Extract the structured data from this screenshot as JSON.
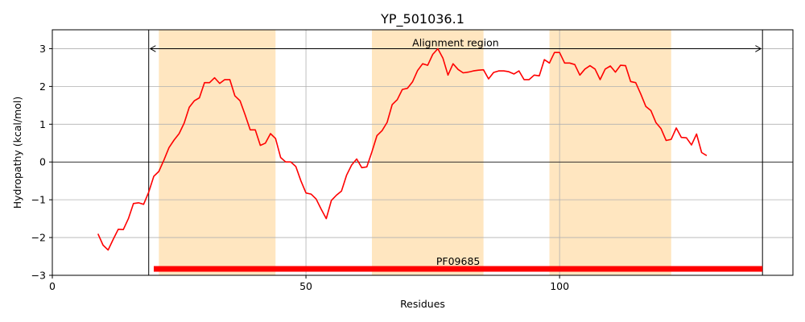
{
  "chart_data": {
    "type": "line",
    "title": "YP_501036.1",
    "xlabel": "Residues",
    "ylabel": "Hydropathy (kcal/mol)",
    "xlim": [
      0,
      146
    ],
    "ylim": [
      -3,
      3.5
    ],
    "xticks": [
      0,
      50,
      100
    ],
    "yticks": [
      -3,
      -2,
      -1,
      0,
      1,
      2,
      3
    ],
    "grid": true,
    "line_color": "#ff0000",
    "series": [
      {
        "x": [
          9,
          10,
          11,
          12,
          13,
          14,
          15,
          16,
          17,
          18,
          19,
          20,
          21,
          22,
          23,
          24,
          25,
          26,
          27,
          28,
          29,
          30,
          31,
          32,
          33,
          34,
          35,
          36,
          37,
          38,
          39,
          40,
          41,
          42,
          43,
          44,
          45,
          46,
          47,
          48,
          49,
          50,
          51,
          52,
          53,
          54,
          55,
          56,
          57,
          58,
          59,
          60,
          61,
          62,
          63,
          64,
          65,
          66,
          67,
          68,
          69,
          70,
          71,
          72,
          73,
          74,
          75,
          76,
          77,
          78,
          79,
          80,
          81,
          82,
          83,
          84,
          85,
          86,
          87,
          88,
          89,
          90,
          91,
          92,
          93,
          94,
          95,
          96,
          97,
          98,
          99,
          100,
          101,
          102,
          103,
          104,
          105,
          106,
          107,
          108,
          109,
          110,
          111,
          112,
          113,
          114,
          115,
          116,
          117,
          118,
          119,
          120,
          121,
          122,
          123,
          124,
          125,
          126,
          127,
          128,
          129
        ],
        "y": [
          -1.9,
          -2.2,
          -2.33,
          -2.05,
          -1.78,
          -1.79,
          -1.5,
          -1.1,
          -1.08,
          -1.12,
          -0.8,
          -0.38,
          -0.25,
          0.05,
          0.38,
          0.58,
          0.75,
          1.03,
          1.45,
          1.62,
          1.7,
          2.1,
          2.1,
          2.23,
          2.08,
          2.18,
          2.18,
          1.75,
          1.62,
          1.25,
          0.85,
          0.85,
          0.44,
          0.5,
          0.75,
          0.62,
          0.12,
          0.0,
          0.0,
          -0.12,
          -0.5,
          -0.82,
          -0.85,
          -0.98,
          -1.25,
          -1.5,
          -1.02,
          -0.88,
          -0.77,
          -0.35,
          -0.08,
          0.08,
          -0.15,
          -0.13,
          0.27,
          0.7,
          0.83,
          1.05,
          1.52,
          1.65,
          1.92,
          1.95,
          2.12,
          2.42,
          2.6,
          2.56,
          2.85,
          3.0,
          2.75,
          2.3,
          2.6,
          2.45,
          2.36,
          2.38,
          2.41,
          2.43,
          2.44,
          2.2,
          2.37,
          2.41,
          2.41,
          2.39,
          2.33,
          2.41,
          2.18,
          2.18,
          2.3,
          2.28,
          2.71,
          2.62,
          2.9,
          2.9,
          2.62,
          2.62,
          2.58,
          2.3,
          2.46,
          2.55,
          2.46,
          2.18,
          2.46,
          2.54,
          2.38,
          2.56,
          2.55,
          2.13,
          2.1,
          1.8,
          1.47,
          1.36,
          1.04,
          0.88,
          0.57,
          0.6,
          0.9,
          0.65,
          0.64,
          0.45,
          0.74,
          0.25,
          0.17
        ]
      }
    ],
    "shaded_regions": [
      [
        21,
        44
      ],
      [
        63,
        85
      ],
      [
        98,
        122
      ]
    ],
    "shaded_color": "#ffe6c0",
    "alignment_region": {
      "label": "Alignment region",
      "start": 19,
      "end": 140,
      "y": 3
    },
    "domain_bar": {
      "label": "PF09685",
      "start": 20,
      "end": 140,
      "y": -2.83,
      "color": "#ff0000"
    }
  }
}
